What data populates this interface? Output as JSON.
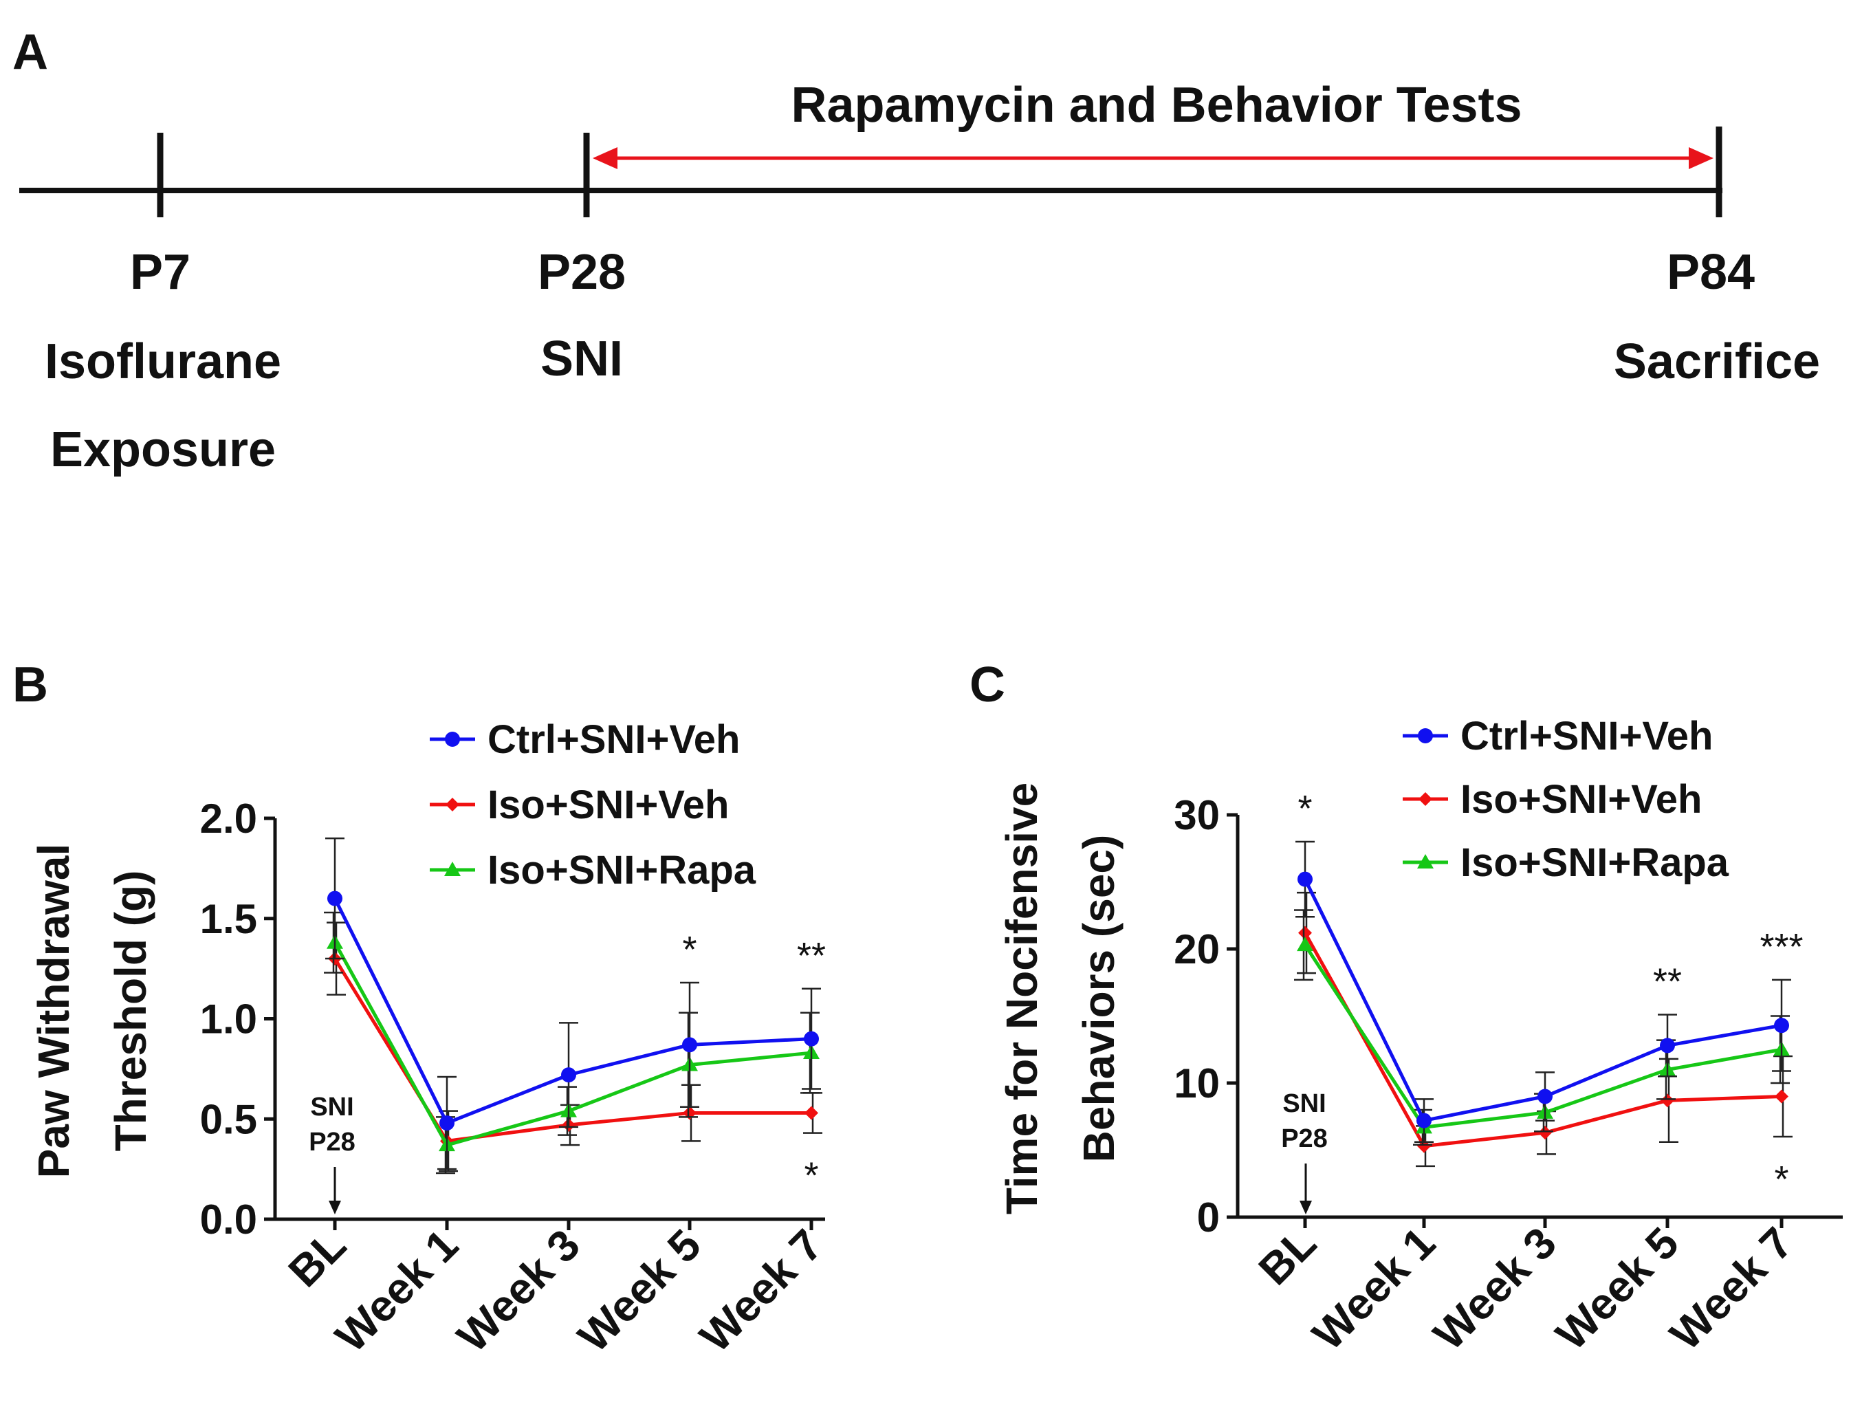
{
  "panel_a": {
    "label": "A",
    "title": "Rapamycin and Behavior Tests",
    "milestones": [
      {
        "day": "P7",
        "lines": [
          "Isoflurane",
          "Exposure"
        ]
      },
      {
        "day": "P28",
        "lines": [
          "SNI"
        ]
      },
      {
        "day": "P84",
        "lines": [
          "Sacrifice"
        ]
      }
    ],
    "arrow_color": "#e8131b"
  },
  "chart_data": [
    {
      "label": "B",
      "type": "line",
      "ylabel_lines": [
        "Paw Withdrawal",
        "Threshold (g)"
      ],
      "ylim": [
        0,
        2.0
      ],
      "yticks": [
        "0.0",
        "0.5",
        "1.0",
        "1.5",
        "2.0"
      ],
      "ytick_values": [
        0,
        0.5,
        1.0,
        1.5,
        2.0
      ],
      "categories": [
        "BL",
        "Week 1",
        "Week 3",
        "Week 5",
        "Week 7"
      ],
      "series": [
        {
          "name": "Ctrl+SNI+Veh",
          "color": "#1010f0",
          "marker": "circle",
          "values": [
            1.6,
            0.48,
            0.72,
            0.87,
            0.9
          ],
          "err": [
            0.3,
            0.23,
            0.26,
            0.31,
            0.25
          ]
        },
        {
          "name": "Iso+SNI+Veh",
          "color": "#f01010",
          "marker": "diamond",
          "values": [
            1.3,
            0.39,
            0.47,
            0.53,
            0.53
          ],
          "err": [
            0.18,
            0.15,
            0.1,
            0.14,
            0.1
          ]
        },
        {
          "name": "Iso+SNI+Rapa",
          "color": "#16c716",
          "marker": "triangle",
          "values": [
            1.38,
            0.37,
            0.54,
            0.77,
            0.83
          ],
          "err": [
            0.15,
            0.14,
            0.12,
            0.26,
            0.2
          ]
        }
      ],
      "annotation": {
        "lines": [
          "SNI",
          "P28"
        ]
      },
      "stars_top": [
        "",
        "",
        "",
        "*",
        "**"
      ],
      "stars_bottom": [
        "",
        "",
        "",
        "",
        "*"
      ],
      "legend_position": "top-right"
    },
    {
      "label": "C",
      "type": "line",
      "ylabel_lines": [
        "Time for Nocifensive",
        "Behaviors (sec)"
      ],
      "ylim": [
        0,
        30
      ],
      "yticks": [
        "0",
        "10",
        "20",
        "30"
      ],
      "ytick_values": [
        0,
        10,
        20,
        30
      ],
      "categories": [
        "BL",
        "Week 1",
        "Week 3",
        "Week 5",
        "Week 7"
      ],
      "series": [
        {
          "name": "Ctrl+SNI+Veh",
          "color": "#1010f0",
          "marker": "circle",
          "values": [
            25.2,
            7.2,
            9.0,
            12.8,
            14.3
          ],
          "err": [
            2.8,
            1.6,
            1.8,
            2.3,
            3.4
          ]
        },
        {
          "name": "Iso+SNI+Veh",
          "color": "#f01010",
          "marker": "diamond",
          "values": [
            21.2,
            5.3,
            6.3,
            8.7,
            9.0
          ],
          "err": [
            3.0,
            1.5,
            1.6,
            3.1,
            3.0
          ]
        },
        {
          "name": "Iso+SNI+Rapa",
          "color": "#16c716",
          "marker": "triangle",
          "values": [
            20.3,
            6.7,
            7.8,
            11.0,
            12.5
          ],
          "err": [
            2.6,
            1.3,
            1.4,
            2.2,
            2.5
          ]
        }
      ],
      "annotation": {
        "lines": [
          "SNI",
          "P28"
        ]
      },
      "stars_top": [
        "*",
        "",
        "",
        "**",
        "***"
      ],
      "stars_bottom": [
        "",
        "",
        "",
        "",
        "*"
      ],
      "legend_position": "top-right"
    }
  ]
}
